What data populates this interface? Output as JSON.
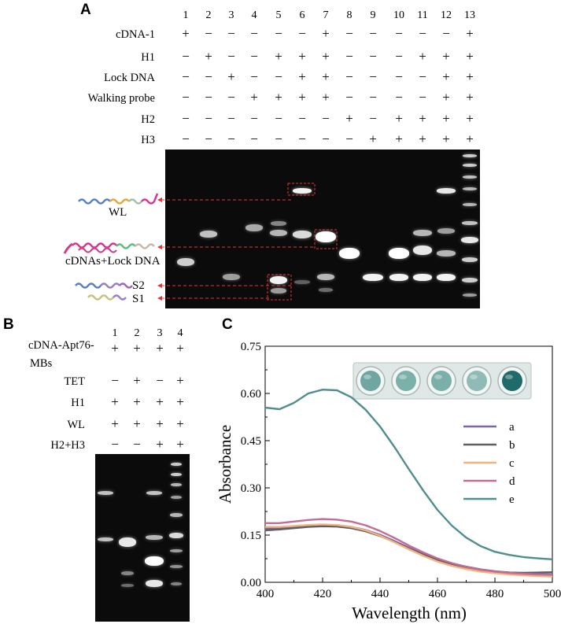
{
  "panel_a": {
    "letter": "A",
    "lane_numbers": [
      "1",
      "2",
      "3",
      "4",
      "5",
      "6",
      "7",
      "8",
      "9",
      "10",
      "11",
      "12",
      "13"
    ],
    "row_labels": [
      "cDNA-1",
      "H1",
      "Lock DNA",
      "Walking probe",
      "H2",
      "H3"
    ],
    "row_signs": [
      [
        "+",
        "−",
        "−",
        "−",
        "−",
        "−",
        "+",
        "−",
        "−",
        "−",
        "−",
        "−",
        "+"
      ],
      [
        "−",
        "+",
        "−",
        "−",
        "+",
        "+",
        "+",
        "−",
        "−",
        "−",
        "+",
        "+",
        "+"
      ],
      [
        "−",
        "−",
        "+",
        "−",
        "−",
        "+",
        "+",
        "−",
        "−",
        "−",
        "−",
        "+",
        "+"
      ],
      [
        "−",
        "−",
        "−",
        "+",
        "+",
        "+",
        "+",
        "−",
        "−",
        "−",
        "−",
        "+",
        "+"
      ],
      [
        "−",
        "−",
        "−",
        "−",
        "−",
        "−",
        "−",
        "+",
        "−",
        "+",
        "+",
        "+",
        "+"
      ],
      [
        "−",
        "−",
        "−",
        "−",
        "−",
        "−",
        "−",
        "−",
        "+",
        "+",
        "+",
        "+",
        "+"
      ]
    ],
    "annotations": [
      "WL",
      "cDNAs+Lock DNA",
      "S2",
      "S1"
    ]
  },
  "panel_b": {
    "letter": "B",
    "lane_numbers": [
      "1",
      "2",
      "3",
      "4"
    ],
    "row_labels": [
      "cDNA-Apt76-\nMBs",
      "TET",
      "H1",
      "WL",
      "H2+H3"
    ],
    "row_label_line1": "cDNA-Apt76-",
    "row_label_line2": "MBs",
    "row_signs": [
      [
        "+",
        "+",
        "+",
        "+"
      ],
      [
        "−",
        "+",
        "−",
        "+"
      ],
      [
        "+",
        "+",
        "+",
        "+"
      ],
      [
        "+",
        "+",
        "+",
        "+"
      ],
      [
        "−",
        "−",
        "+",
        "+"
      ]
    ]
  },
  "panel_c": {
    "letter": "C"
  },
  "chart_data": {
    "type": "line",
    "xlabel": "Wavelength (nm)",
    "ylabel": "Absorbance",
    "xlim": [
      400,
      500
    ],
    "ylim": [
      0,
      0.75
    ],
    "xticks": [
      "400",
      "420",
      "440",
      "460",
      "480",
      "500"
    ],
    "yticks": [
      "0.00",
      "0.15",
      "0.30",
      "0.45",
      "0.60",
      "0.75"
    ],
    "legend_position": "right",
    "x": [
      400,
      405,
      410,
      415,
      420,
      425,
      430,
      435,
      440,
      445,
      450,
      455,
      460,
      465,
      470,
      475,
      480,
      485,
      490,
      495,
      500
    ],
    "series": [
      {
        "name": "a",
        "color": "#7b66a6",
        "values": [
          0.17,
          0.172,
          0.176,
          0.18,
          0.182,
          0.181,
          0.176,
          0.166,
          0.151,
          0.131,
          0.11,
          0.09,
          0.073,
          0.06,
          0.05,
          0.041,
          0.035,
          0.031,
          0.028,
          0.026,
          0.025
        ]
      },
      {
        "name": "b",
        "color": "#5e5e68",
        "values": [
          0.165,
          0.168,
          0.172,
          0.176,
          0.178,
          0.177,
          0.172,
          0.162,
          0.147,
          0.128,
          0.107,
          0.088,
          0.071,
          0.058,
          0.047,
          0.039,
          0.034,
          0.031,
          0.03,
          0.031,
          0.032
        ]
      },
      {
        "name": "c",
        "color": "#f2b47c",
        "values": [
          0.176,
          0.176,
          0.179,
          0.182,
          0.184,
          0.182,
          0.176,
          0.165,
          0.148,
          0.127,
          0.105,
          0.084,
          0.066,
          0.052,
          0.042,
          0.034,
          0.029,
          0.025,
          0.022,
          0.02,
          0.018
        ]
      },
      {
        "name": "d",
        "color": "#c46b98",
        "values": [
          0.188,
          0.188,
          0.193,
          0.198,
          0.201,
          0.199,
          0.193,
          0.181,
          0.163,
          0.141,
          0.117,
          0.095,
          0.076,
          0.061,
          0.049,
          0.04,
          0.034,
          0.03,
          0.027,
          0.025,
          0.024
        ]
      },
      {
        "name": "e",
        "color": "#4f8f8c",
        "values": [
          0.555,
          0.55,
          0.57,
          0.6,
          0.612,
          0.61,
          0.588,
          0.548,
          0.495,
          0.43,
          0.36,
          0.292,
          0.23,
          0.18,
          0.142,
          0.115,
          0.097,
          0.087,
          0.08,
          0.076,
          0.073
        ]
      }
    ]
  }
}
